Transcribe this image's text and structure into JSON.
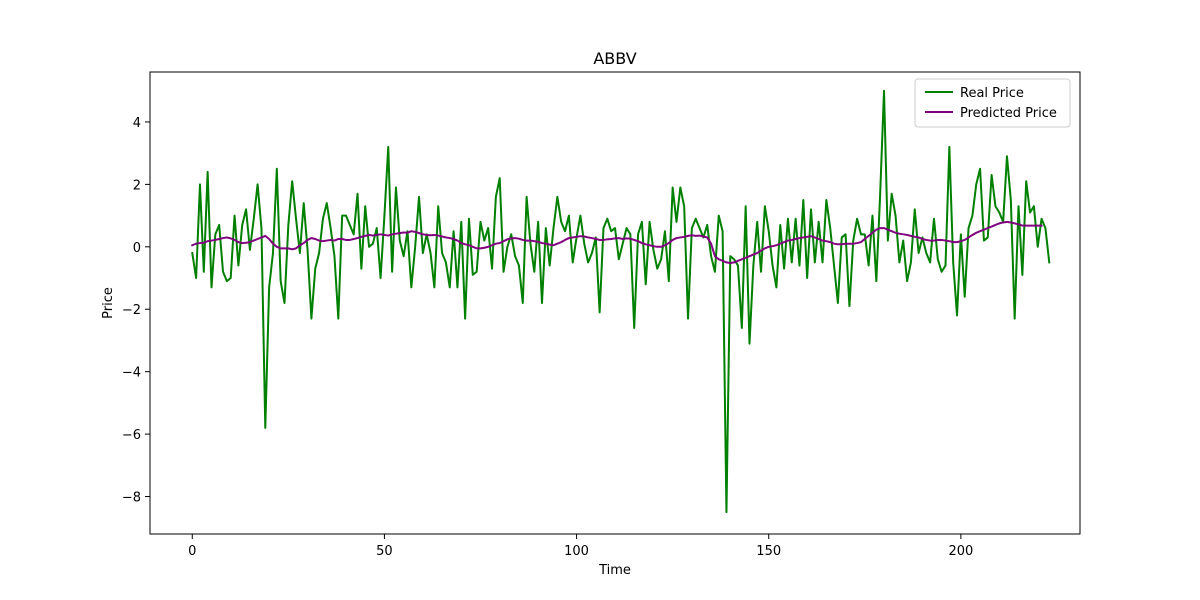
{
  "chart_data": {
    "type": "line",
    "title": "ABBV",
    "xlabel": "Time",
    "ylabel": "Price",
    "xlim": [
      -11,
      231
    ],
    "ylim": [
      -9.2,
      5.6
    ],
    "xticks": [
      0,
      50,
      100,
      150,
      200
    ],
    "yticks": [
      -8,
      -6,
      -4,
      -2,
      0,
      2,
      4
    ],
    "grid": false,
    "legend_position": "top-right",
    "series": [
      {
        "name": "Real Price",
        "color": "#008000",
        "values": [
          -0.2,
          -1.0,
          2.0,
          -0.8,
          2.4,
          -1.3,
          0.4,
          0.7,
          -0.8,
          -1.1,
          -1.0,
          1.0,
          -0.6,
          0.7,
          1.2,
          -0.1,
          0.9,
          2.0,
          0.6,
          -5.8,
          -1.3,
          -0.2,
          2.5,
          -1.1,
          -1.8,
          0.7,
          2.1,
          0.9,
          -0.2,
          1.4,
          -0.1,
          -2.3,
          -0.7,
          -0.2,
          0.9,
          1.4,
          0.6,
          -0.3,
          -2.3,
          1.0,
          1.0,
          0.7,
          0.4,
          1.7,
          -0.7,
          1.3,
          0.0,
          0.1,
          0.6,
          -1.0,
          1.0,
          3.2,
          -0.8,
          1.9,
          0.2,
          -0.3,
          0.5,
          -1.3,
          0.0,
          1.6,
          -0.2,
          0.4,
          -0.2,
          -1.3,
          1.3,
          -0.2,
          -0.5,
          -1.3,
          0.5,
          -1.3,
          0.8,
          -2.3,
          0.9,
          -0.9,
          -0.8,
          0.8,
          0.2,
          0.6,
          -0.7,
          1.6,
          2.2,
          -0.8,
          0.0,
          0.4,
          -0.3,
          -0.6,
          -1.8,
          1.6,
          0.1,
          -0.8,
          0.8,
          -1.8,
          0.6,
          -0.6,
          0.6,
          1.6,
          0.8,
          0.5,
          1.0,
          -0.5,
          0.3,
          1.0,
          0.1,
          -0.5,
          -0.2,
          0.3,
          -2.1,
          0.6,
          0.9,
          0.5,
          0.6,
          -0.4,
          0.1,
          0.6,
          0.4,
          -2.6,
          0.4,
          0.8,
          -1.2,
          0.8,
          -0.1,
          -0.7,
          -0.4,
          0.5,
          -1.1,
          1.9,
          0.8,
          1.9,
          1.3,
          -2.3,
          0.6,
          0.9,
          0.6,
          0.3,
          0.7,
          -0.3,
          -0.8,
          1.0,
          0.5,
          -8.5,
          -0.3,
          -0.4,
          -0.6,
          -2.6,
          1.3,
          -3.1,
          -0.6,
          0.8,
          -0.8,
          1.3,
          0.5,
          -0.6,
          -1.3,
          0.7,
          -0.7,
          0.9,
          -0.5,
          0.9,
          -0.6,
          1.5,
          -1.0,
          1.2,
          -0.5,
          0.8,
          -0.5,
          1.5,
          0.6,
          -0.6,
          -1.8,
          0.3,
          0.4,
          -1.9,
          0.2,
          0.9,
          0.4,
          0.4,
          -0.6,
          1.0,
          -1.1,
          1.7,
          5.0,
          0.2,
          1.7,
          1.0,
          -0.5,
          0.2,
          -1.1,
          -0.5,
          1.2,
          -0.2,
          0.3,
          -0.2,
          -0.5,
          0.9,
          -0.4,
          -0.8,
          -0.6,
          3.2,
          -0.5,
          -2.2,
          0.4,
          -1.6,
          0.6,
          1.0,
          2.0,
          2.5,
          0.2,
          0.3,
          2.3,
          1.3,
          1.1,
          0.8,
          2.9,
          1.5,
          -2.3,
          1.3,
          -0.9,
          2.1,
          1.1,
          1.3,
          0.0,
          0.9,
          0.6,
          -0.5
        ]
      },
      {
        "name": "Predicted Price",
        "color": "#800080",
        "values": [
          0.05,
          0.1,
          0.12,
          0.13,
          0.18,
          0.2,
          0.22,
          0.25,
          0.28,
          0.3,
          0.27,
          0.22,
          0.15,
          0.12,
          0.13,
          0.15,
          0.2,
          0.25,
          0.3,
          0.35,
          0.25,
          0.1,
          0.0,
          -0.05,
          -0.05,
          -0.05,
          -0.08,
          -0.05,
          0.05,
          0.12,
          0.22,
          0.28,
          0.25,
          0.2,
          0.18,
          0.2,
          0.22,
          0.2,
          0.25,
          0.25,
          0.22,
          0.22,
          0.25,
          0.28,
          0.32,
          0.35,
          0.38,
          0.36,
          0.38,
          0.4,
          0.38,
          0.36,
          0.4,
          0.42,
          0.44,
          0.46,
          0.45,
          0.5,
          0.48,
          0.44,
          0.4,
          0.38,
          0.37,
          0.38,
          0.36,
          0.33,
          0.3,
          0.28,
          0.25,
          0.2,
          0.12,
          0.08,
          0.05,
          0.0,
          -0.05,
          -0.05,
          -0.03,
          0.0,
          0.05,
          0.1,
          0.12,
          0.18,
          0.24,
          0.27,
          0.28,
          0.26,
          0.22,
          0.2,
          0.2,
          0.18,
          0.16,
          0.12,
          0.1,
          0.07,
          0.05,
          0.1,
          0.15,
          0.22,
          0.28,
          0.3,
          0.32,
          0.34,
          0.33,
          0.3,
          0.28,
          0.25,
          0.22,
          0.22,
          0.24,
          0.25,
          0.27,
          0.28,
          0.25,
          0.27,
          0.26,
          0.22,
          0.18,
          0.12,
          0.08,
          0.05,
          0.02,
          0.0,
          0.0,
          0.05,
          0.12,
          0.22,
          0.28,
          0.3,
          0.32,
          0.35,
          0.37,
          0.35,
          0.36,
          0.33,
          0.3,
          0.1,
          -0.3,
          -0.4,
          -0.45,
          -0.5,
          -0.52,
          -0.5,
          -0.45,
          -0.4,
          -0.35,
          -0.3,
          -0.25,
          -0.2,
          -0.12,
          -0.05,
          0.0,
          0.02,
          0.05,
          0.1,
          0.15,
          0.2,
          0.22,
          0.25,
          0.28,
          0.3,
          0.32,
          0.34,
          0.3,
          0.25,
          0.2,
          0.18,
          0.15,
          0.1,
          0.08,
          0.08,
          0.1,
          0.1,
          0.1,
          0.12,
          0.15,
          0.25,
          0.35,
          0.45,
          0.55,
          0.6,
          0.6,
          0.55,
          0.5,
          0.45,
          0.42,
          0.4,
          0.38,
          0.35,
          0.32,
          0.3,
          0.25,
          0.22,
          0.2,
          0.2,
          0.22,
          0.22,
          0.2,
          0.18,
          0.15,
          0.15,
          0.18,
          0.22,
          0.3,
          0.38,
          0.45,
          0.5,
          0.55,
          0.6,
          0.65,
          0.7,
          0.75,
          0.78,
          0.8,
          0.78,
          0.75,
          0.72,
          0.68,
          0.68,
          0.68,
          0.68,
          0.68,
          0.68
        ]
      }
    ]
  }
}
